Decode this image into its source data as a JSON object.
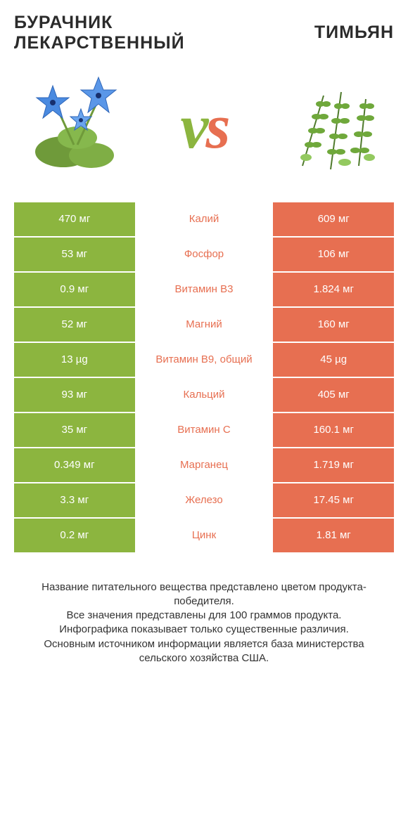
{
  "colors": {
    "green": "#8cb53f",
    "orange": "#e76f51",
    "text": "#333333",
    "vs_left": "#8cb53f",
    "vs_right": "#e76f51"
  },
  "header": {
    "left_name": "Бурачник лекарственный",
    "right_name": "Тимьян",
    "vs": "vs"
  },
  "rows": [
    {
      "left": "470 мг",
      "mid": "Калий",
      "right": "609 мг",
      "winner": "right"
    },
    {
      "left": "53 мг",
      "mid": "Фосфор",
      "right": "106 мг",
      "winner": "right"
    },
    {
      "left": "0.9 мг",
      "mid": "Витамин B3",
      "right": "1.824 мг",
      "winner": "right"
    },
    {
      "left": "52 мг",
      "mid": "Магний",
      "right": "160 мг",
      "winner": "right"
    },
    {
      "left": "13 µg",
      "mid": "Витамин B9, общий",
      "right": "45 µg",
      "winner": "right"
    },
    {
      "left": "93 мг",
      "mid": "Кальций",
      "right": "405 мг",
      "winner": "right"
    },
    {
      "left": "35 мг",
      "mid": "Витамин C",
      "right": "160.1 мг",
      "winner": "right"
    },
    {
      "left": "0.349 мг",
      "mid": "Марганец",
      "right": "1.719 мг",
      "winner": "right"
    },
    {
      "left": "3.3 мг",
      "mid": "Железо",
      "right": "17.45 мг",
      "winner": "right"
    },
    {
      "left": "0.2 мг",
      "mid": "Цинк",
      "right": "1.81 мг",
      "winner": "right"
    }
  ],
  "footer": {
    "line1": "Название питательного вещества представлено цветом продукта-победителя.",
    "line2": "Все значения представлены для 100 граммов продукта.",
    "line3": "Инфографика показывает только существенные различия.",
    "line4": "Основным источником информации является база министерства сельского хозяйства США."
  },
  "typography": {
    "title_fontsize": 25,
    "vs_fontsize": 90,
    "cell_fontsize": 15,
    "footer_fontsize": 15
  }
}
